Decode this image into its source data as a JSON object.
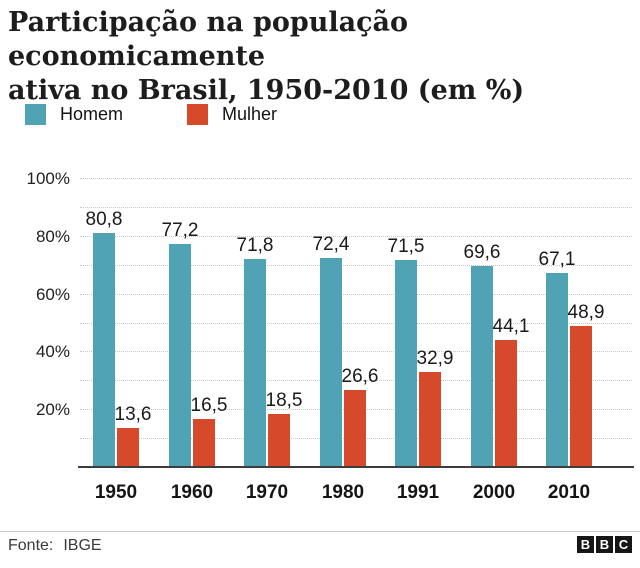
{
  "title": {
    "line1": "Participação na população economicamente",
    "line2": "ativa no Brasil, 1950-2010 (em %)"
  },
  "legend": [
    {
      "label": "Homem",
      "color": "#4fa3b4"
    },
    {
      "label": "Mulher",
      "color": "#d6492b"
    }
  ],
  "chart_data": {
    "type": "bar",
    "title": "Participação na população economicamente ativa no Brasil, 1950-2010 (em %)",
    "categories": [
      "1950",
      "1960",
      "1970",
      "1980",
      "1991",
      "2000",
      "2010"
    ],
    "series": [
      {
        "name": "Homem",
        "color": "#4fa3b4",
        "values": [
          80.8,
          77.2,
          71.8,
          72.4,
          71.5,
          69.6,
          67.1
        ],
        "labels": [
          "80,8",
          "77,2",
          "71,8",
          "72,4",
          "71,5",
          "69,6",
          "67,1"
        ]
      },
      {
        "name": "Mulher",
        "color": "#d6492b",
        "values": [
          13.6,
          16.5,
          18.5,
          26.6,
          32.9,
          44.1,
          48.9
        ],
        "labels": [
          "13,6",
          "16,5",
          "18,5",
          "26,6",
          "32,9",
          "44,1",
          "48,9"
        ]
      }
    ],
    "ylim": [
      0,
      100
    ],
    "grid_step": 10,
    "grid_style": "dotted",
    "yticks": [
      {
        "value": 100,
        "label": "100%"
      },
      {
        "value": 80,
        "label": "80%"
      },
      {
        "value": 60,
        "label": "60%"
      },
      {
        "value": 40,
        "label": "40%"
      },
      {
        "value": 20,
        "label": "20%"
      }
    ],
    "legend_position": "top-left",
    "xlabel": "",
    "ylabel": ""
  },
  "footer": {
    "source_label": "Fonte:",
    "source": "IBGE",
    "logo_letters": [
      "B",
      "B",
      "C"
    ]
  }
}
